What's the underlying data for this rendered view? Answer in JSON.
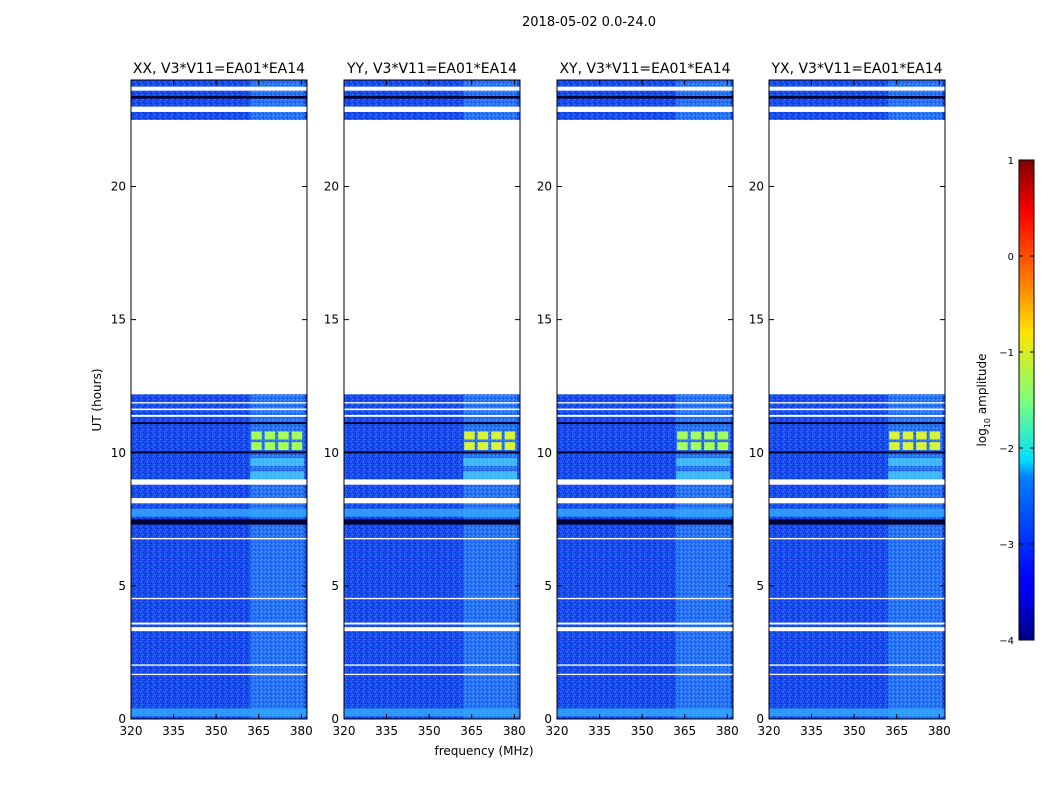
{
  "chart_data": {
    "type": "heatmap",
    "suptitle": "2018-05-02 0.0-24.0",
    "xlabel": "frequency (MHz)",
    "ylabel": "UT (hours)",
    "xlim": [
      320,
      382
    ],
    "ylim": [
      0,
      24
    ],
    "xticks": [
      320,
      335,
      350,
      365,
      380
    ],
    "yticks": [
      0,
      5,
      10,
      15,
      20
    ],
    "panels": [
      {
        "title": "XX, V3*V11=EA01*EA14"
      },
      {
        "title": "YY, V3*V11=EA01*EA14"
      },
      {
        "title": "XY, V3*V11=EA01*EA14"
      },
      {
        "title": "YX, V3*V11=EA01*EA14"
      }
    ],
    "time_coverage_hours": [
      [
        0,
        12.2
      ],
      [
        22.5,
        24
      ]
    ],
    "bright_band_mhz": [
      362,
      381
    ],
    "colorbar": {
      "label": "log10 amplitude",
      "label_main": "log",
      "label_sub": "10",
      "label_rest": " amplitude",
      "range": [
        -4,
        1
      ],
      "ticks": [
        -4,
        -3,
        -2,
        -1,
        0,
        1
      ],
      "tick_labels": [
        "−4",
        "−3",
        "−2",
        "−1",
        "0",
        "1"
      ],
      "colormap": "jet"
    }
  }
}
